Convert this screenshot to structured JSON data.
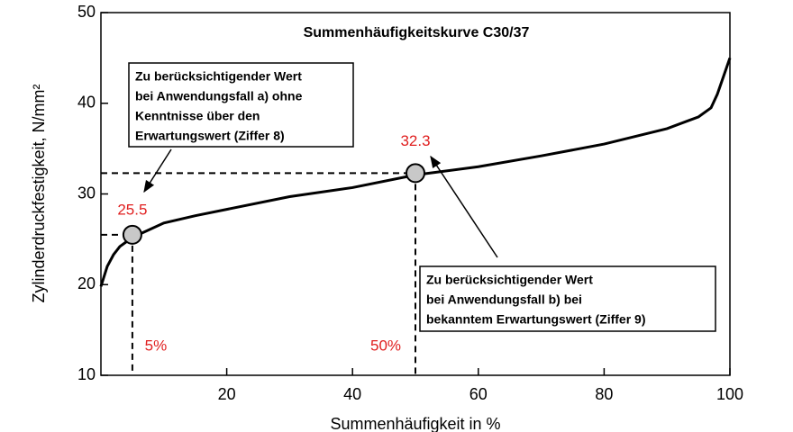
{
  "chart_data": {
    "type": "line",
    "title": "Summenhäufigkeitskurve C30/37",
    "xlabel": "Summenhäufigkeit in %",
    "ylabel": "Zylinderdruckfestigkeit, N/mm²",
    "x": [
      0,
      1,
      2,
      3,
      5,
      10,
      15,
      20,
      30,
      40,
      50,
      60,
      70,
      80,
      90,
      95,
      97,
      98,
      100
    ],
    "values": [
      19.8,
      22,
      23.3,
      24.2,
      25.2,
      26.8,
      27.6,
      28.3,
      29.7,
      30.7,
      32.1,
      33.0,
      34.2,
      35.5,
      37.2,
      38.5,
      39.5,
      41,
      45
    ],
    "color": "#000000",
    "points": {
      "x": [
        5,
        50
      ],
      "x_labels": [
        "5%",
        "50%"
      ],
      "values": [
        25.5,
        32.3
      ],
      "value_labels": [
        "25.5",
        "32.3"
      ],
      "color": "#c8c8c8",
      "label_color": "#e02020"
    },
    "annotations": [
      {
        "lines": [
          "Zu berücksichtigender Wert",
          "bei Anwendungsfall a) ohne",
          "Kenntnisse über den",
          "Erwartungswert (Ziffer 8)"
        ]
      },
      {
        "lines": [
          "Zu berücksichtigender Wert",
          "bei Anwendungsfall b) bei",
          "bekanntem Erwartungswert (Ziffer 9)"
        ]
      }
    ],
    "xlim": [
      0,
      100
    ],
    "xticks": [
      20,
      40,
      60,
      80,
      100
    ],
    "ylim": [
      10,
      50
    ],
    "yticks": [
      10,
      20,
      30,
      40,
      50
    ]
  }
}
